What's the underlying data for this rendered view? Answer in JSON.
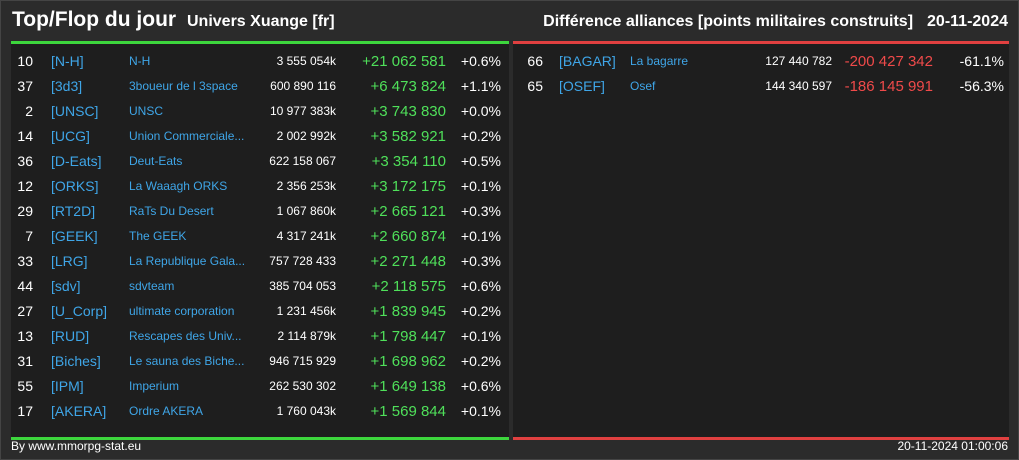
{
  "header": {
    "title": "Top/Flop du jour",
    "universe": "Univers Xuange [fr]",
    "category": "Différence alliances [points militaires construits]",
    "date": "20-11-2024"
  },
  "top": [
    {
      "rank": "10",
      "tag": "[N-H]",
      "name": "N-H",
      "points": "3 555 054k",
      "diff": "+21 062 581",
      "pct": "+0.6%"
    },
    {
      "rank": "37",
      "tag": "[3d3]",
      "name": "3boueur de l 3space",
      "points": "600 890 116",
      "diff": "+6 473 824",
      "pct": "+1.1%"
    },
    {
      "rank": "2",
      "tag": "[UNSC]",
      "name": "UNSC",
      "points": "10 977 383k",
      "diff": "+3 743 830",
      "pct": "+0.0%"
    },
    {
      "rank": "14",
      "tag": "[UCG]",
      "name": "Union Commerciale...",
      "points": "2 002 992k",
      "diff": "+3 582 921",
      "pct": "+0.2%"
    },
    {
      "rank": "36",
      "tag": "[D-Eats]",
      "name": "Deut-Eats",
      "points": "622 158 067",
      "diff": "+3 354 110",
      "pct": "+0.5%"
    },
    {
      "rank": "12",
      "tag": "[ORKS]",
      "name": "La Waaagh ORKS",
      "points": "2 356 253k",
      "diff": "+3 172 175",
      "pct": "+0.1%"
    },
    {
      "rank": "29",
      "tag": "[RT2D]",
      "name": "RaTs Du Desert",
      "points": "1 067 860k",
      "diff": "+2 665 121",
      "pct": "+0.3%"
    },
    {
      "rank": "7",
      "tag": "[GEEK]",
      "name": "The GEEK",
      "points": "4 317 241k",
      "diff": "+2 660 874",
      "pct": "+0.1%"
    },
    {
      "rank": "33",
      "tag": "[LRG]",
      "name": "La Republique Gala...",
      "points": "757 728 433",
      "diff": "+2 271 448",
      "pct": "+0.3%"
    },
    {
      "rank": "44",
      "tag": "[sdv]",
      "name": "sdvteam",
      "points": "385 704 053",
      "diff": "+2 118 575",
      "pct": "+0.6%"
    },
    {
      "rank": "27",
      "tag": "[U_Corp]",
      "name": "ultimate corporation",
      "points": "1 231 456k",
      "diff": "+1 839 945",
      "pct": "+0.2%"
    },
    {
      "rank": "13",
      "tag": "[RUD]",
      "name": "Rescapes des Univ...",
      "points": "2 114 879k",
      "diff": "+1 798 447",
      "pct": "+0.1%"
    },
    {
      "rank": "31",
      "tag": "[Biches]",
      "name": "Le sauna des Biche...",
      "points": "946 715 929",
      "diff": "+1 698 962",
      "pct": "+0.2%"
    },
    {
      "rank": "55",
      "tag": "[IPM]",
      "name": "Imperium",
      "points": "262 530 302",
      "diff": "+1 649 138",
      "pct": "+0.6%"
    },
    {
      "rank": "17",
      "tag": "[AKERA]",
      "name": "Ordre AKERA",
      "points": "1 760 043k",
      "diff": "+1 569 844",
      "pct": "+0.1%"
    }
  ],
  "flop": [
    {
      "rank": "66",
      "tag": "[BAGAR]",
      "name": "La bagarre",
      "points": "127 440 782",
      "diff": "-200 427 342",
      "pct": "-61.1%"
    },
    {
      "rank": "65",
      "tag": "[OSEF]",
      "name": "Osef",
      "points": "144 340 597",
      "diff": "-186 145 991",
      "pct": "-56.3%"
    }
  ],
  "footer": {
    "credit": "By www.mmorpg-stat.eu",
    "timestamp": "20-11-2024 01:00:06"
  },
  "colors": {
    "positive": "#4fe05a",
    "negative": "#f04a4a",
    "link": "#3fa6e8",
    "panel_bg": "#1e1e1e",
    "page_bg": "#2b2b2b"
  }
}
